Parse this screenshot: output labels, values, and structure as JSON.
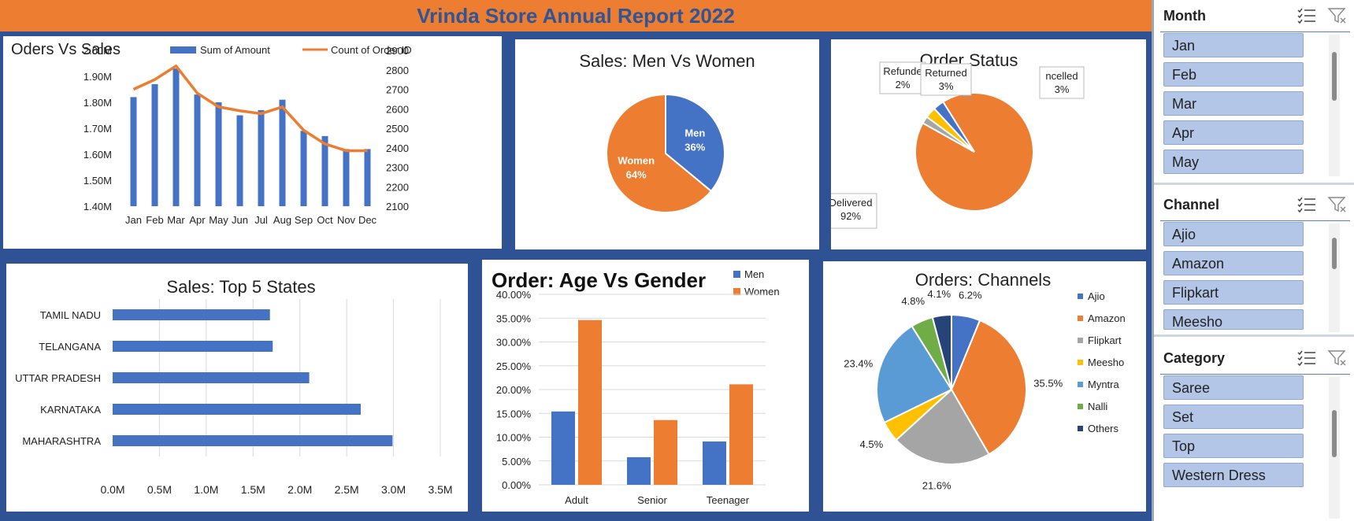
{
  "header": {
    "title": "Vrinda Store Annual Report 2022"
  },
  "colors": {
    "blue": "#4472C4",
    "orange": "#ED7D31",
    "navy": "#2E5294",
    "slicer_fill": "#B4C6E7"
  },
  "chart_data": [
    {
      "id": "orders_vs_sales",
      "type": "bar",
      "title": "Oders Vs Sales",
      "categories": [
        "Jan",
        "Feb",
        "Mar",
        "Apr",
        "May",
        "Jun",
        "Jul",
        "Aug",
        "Sep",
        "Oct",
        "Nov",
        "Dec"
      ],
      "series": [
        {
          "name": "Sum of Amount",
          "type": "bar",
          "axis": "left",
          "values": [
            1.82,
            1.87,
            1.93,
            1.83,
            1.8,
            1.75,
            1.77,
            1.81,
            1.69,
            1.67,
            1.62,
            1.62
          ]
        },
        {
          "name": "Count of Order ID",
          "type": "line",
          "axis": "right",
          "values": [
            2700,
            2750,
            2820,
            2680,
            2610,
            2590,
            2575,
            2610,
            2490,
            2420,
            2385,
            2385
          ]
        }
      ],
      "ylim_left": [
        1.4,
        2.0
      ],
      "yticks_left": [
        "1.40M",
        "1.50M",
        "1.60M",
        "1.70M",
        "1.80M",
        "1.90M",
        "2.00M"
      ],
      "ylim_right": [
        2100,
        2900
      ],
      "yticks_right": [
        "2100",
        "2200",
        "2300",
        "2400",
        "2500",
        "2600",
        "2700",
        "2800",
        "2900"
      ],
      "legend": "top"
    },
    {
      "id": "men_vs_women",
      "type": "pie",
      "title": "Sales: Men Vs Women",
      "slices": [
        {
          "label": "Men",
          "value": 36,
          "pct": "36%",
          "color": "#4472C4"
        },
        {
          "label": "Women",
          "value": 64,
          "pct": "64%",
          "color": "#ED7D31"
        }
      ]
    },
    {
      "id": "order_status",
      "type": "pie",
      "title": "Order Status",
      "slices": [
        {
          "label": "Delivered",
          "value": 92,
          "pct": "92%",
          "color": "#ED7D31"
        },
        {
          "label": "Refunded",
          "value": 2,
          "pct": "2%",
          "color": "#A5A5A5"
        },
        {
          "label": "Returned",
          "value": 3,
          "pct": "3%",
          "color": "#FFC000"
        },
        {
          "label": "Cancelled",
          "value": 3,
          "pct": "3%",
          "color": "#4472C4"
        }
      ],
      "visible_labels": {
        "delivered": "Delivered",
        "refunded": "Refunde",
        "returned": "Returned",
        "cancelled": "ncelled"
      }
    },
    {
      "id": "top_states",
      "type": "bar",
      "orientation": "horizontal",
      "title": "Sales: Top 5 States",
      "categories": [
        "TAMIL NADU",
        "TELANGANA",
        "UTTAR PRADESH",
        "KARNATAKA",
        "MAHARASHTRA"
      ],
      "values": [
        1.68,
        1.71,
        2.1,
        2.65,
        2.99
      ],
      "xlim": [
        0,
        3.5
      ],
      "xticks": [
        "0.0M",
        "0.5M",
        "1.0M",
        "1.5M",
        "2.0M",
        "2.5M",
        "3.0M",
        "3.5M"
      ],
      "grid": true
    },
    {
      "id": "age_vs_gender",
      "type": "bar",
      "title": "Order: Age Vs Gender",
      "categories": [
        "Adult",
        "Senior",
        "Teenager"
      ],
      "series": [
        {
          "name": "Men",
          "values": [
            15.4,
            5.8,
            9.1
          ],
          "color": "#4472C4"
        },
        {
          "name": "Women",
          "values": [
            34.6,
            13.6,
            21.1
          ],
          "color": "#ED7D31"
        }
      ],
      "ylim": [
        0,
        40
      ],
      "yticks": [
        "0.00%",
        "5.00%",
        "10.00%",
        "15.00%",
        "20.00%",
        "25.00%",
        "30.00%",
        "35.00%",
        "40.00%"
      ],
      "legend": "top-right",
      "grid": true
    },
    {
      "id": "channels",
      "type": "pie",
      "title": "Orders: Channels",
      "slices": [
        {
          "label": "Ajio",
          "value": 6.2,
          "pct": "6.2%",
          "color": "#4472C4"
        },
        {
          "label": "Amazon",
          "value": 35.5,
          "pct": "35.5%",
          "color": "#ED7D31"
        },
        {
          "label": "Flipkart",
          "value": 21.6,
          "pct": "21.6%",
          "color": "#A5A5A5"
        },
        {
          "label": "Meesho",
          "value": 4.5,
          "pct": "4.5%",
          "color": "#FFC000"
        },
        {
          "label": "Myntra",
          "value": 23.4,
          "pct": "23.4%",
          "color": "#5B9BD5"
        },
        {
          "label": "Nalli",
          "value": 4.8,
          "pct": "4.8%",
          "color": "#70AD47"
        },
        {
          "label": "Others",
          "value": 4.1,
          "pct": "4.1%",
          "color": "#264478"
        }
      ],
      "legend": "right"
    }
  ],
  "slicers": [
    {
      "title": "Month",
      "items": [
        "Jan",
        "Feb",
        "Mar",
        "Apr",
        "May"
      ]
    },
    {
      "title": "Channel",
      "items": [
        "Ajio",
        "Amazon",
        "Flipkart",
        "Meesho"
      ]
    },
    {
      "title": "Category",
      "items": [
        "Saree",
        "Set",
        "Top",
        "Western Dress"
      ]
    }
  ],
  "icons": {
    "multi_select": "multi-select-icon",
    "clear_filter": "clear-filter-icon"
  }
}
